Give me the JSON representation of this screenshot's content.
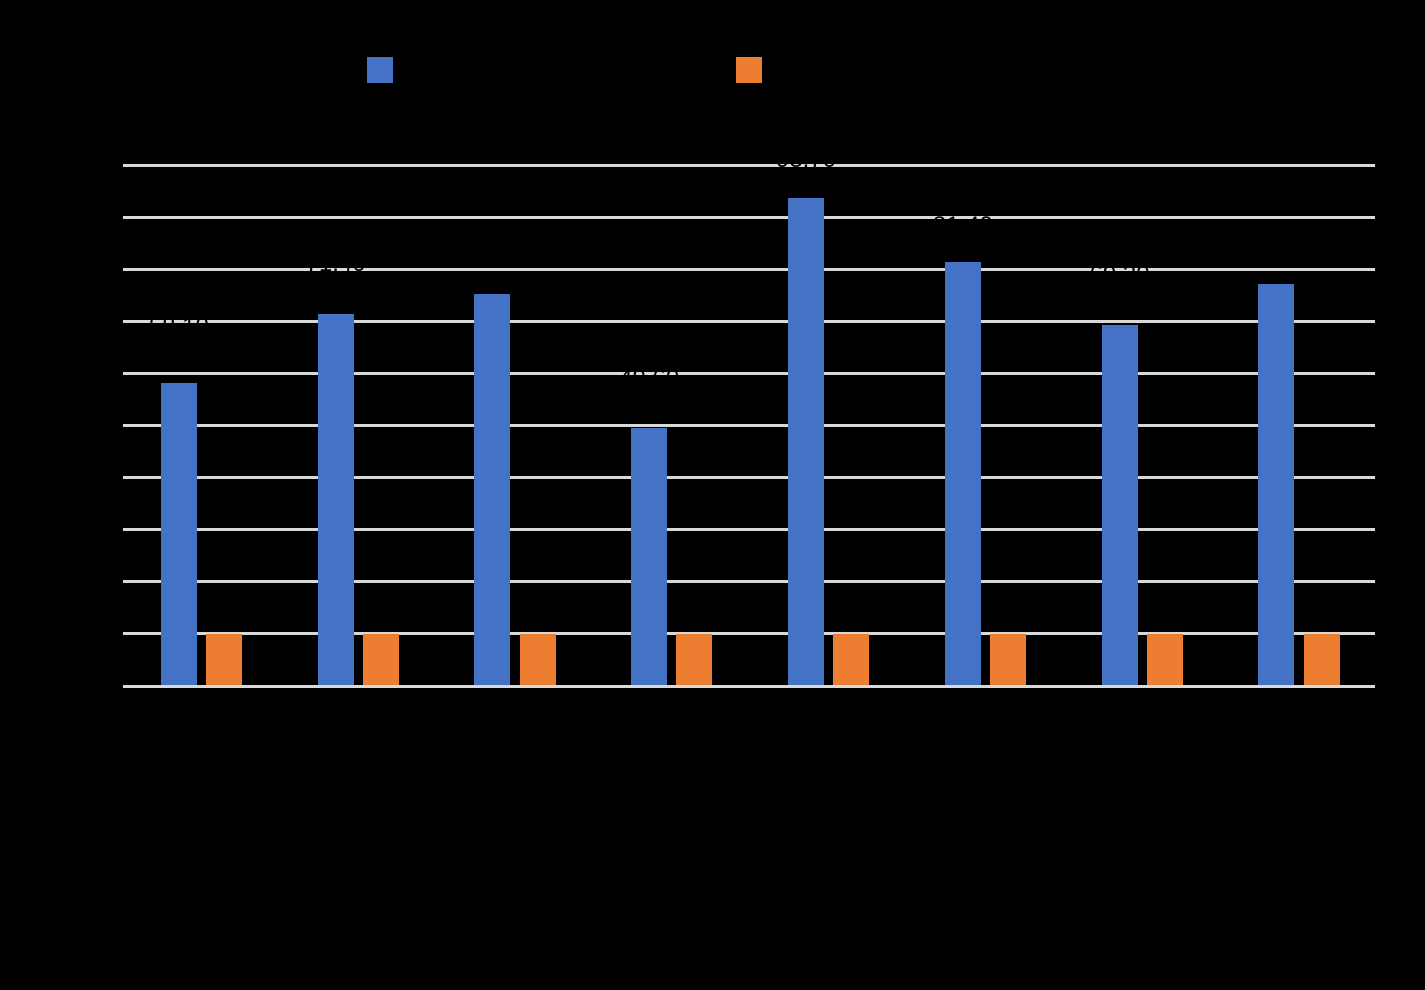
{
  "page": {
    "background_color": "#000000",
    "text_color": "#000000"
  },
  "legend": {
    "items": [
      {
        "id": "series-1",
        "label": "",
        "swatch_color": "#4472C4"
      },
      {
        "id": "series-2",
        "label": "",
        "swatch_color": "#ED7D31"
      }
    ]
  },
  "chart_data": {
    "type": "bar",
    "title": "",
    "categories": [
      "",
      "",
      "",
      "",
      "",
      "",
      "",
      ""
    ],
    "series": [
      {
        "name": "series-1-blue",
        "color": "#4472C4",
        "values": [
          58.1,
          71.4,
          75.3,
          49.6,
          93.7,
          81.4,
          69.3,
          77.1
        ],
        "show_data_labels": true
      },
      {
        "name": "series-2-orange",
        "color": "#ED7D31",
        "values": [
          10,
          10,
          10,
          10,
          10,
          10,
          10,
          10
        ],
        "show_data_labels": false
      }
    ],
    "ylim": [
      0,
      100
    ],
    "y_tick_step": 10,
    "grid": true,
    "gridline_color": "#D9D9D9",
    "axis_line_color": "#D9D9D9",
    "legend_position": "top",
    "label_decimals": 2,
    "note": "All text in the source screenshot is black on a black background and therefore illegible (title, legend labels, axis tick labels and category labels produce no visible pixels). Series values are estimated from bar heights against the 10 gridline intervals (interval taken as 10 units). Blue-series data labels exist above the bars and are visible only as black fragments where they cross the light gridlines."
  }
}
